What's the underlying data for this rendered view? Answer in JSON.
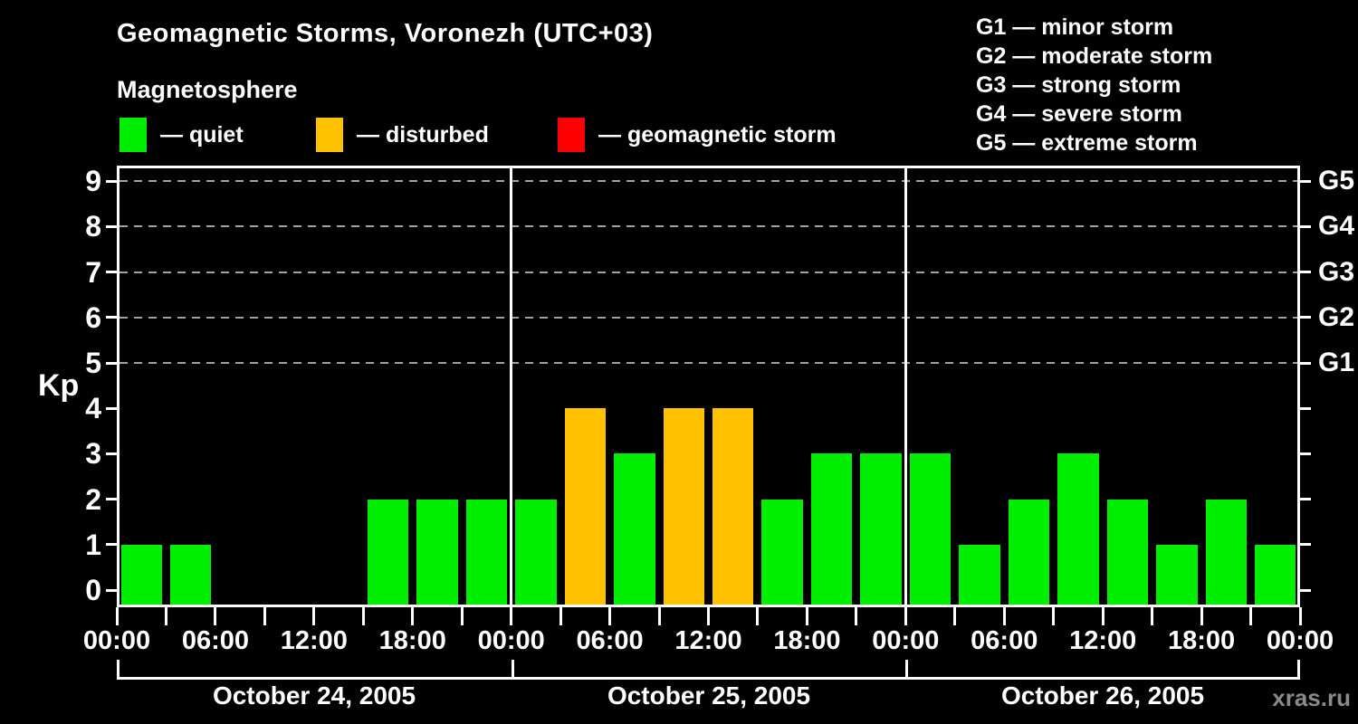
{
  "header": {
    "title": "Geomagnetic Storms, Voronezh (UTC+03)",
    "subtitle": "Magnetosphere"
  },
  "legend": {
    "items": [
      {
        "label": "— quiet",
        "status": "quiet",
        "color": "#00ee00"
      },
      {
        "label": "— disturbed",
        "status": "disturbed",
        "color": "#ffc100"
      },
      {
        "label": "— geomagnetic storm",
        "status": "storm",
        "color": "#ff0000"
      }
    ]
  },
  "g_scale_legend": [
    {
      "label": "G1 — minor storm"
    },
    {
      "label": "G2 — moderate storm"
    },
    {
      "label": "G3 — strong storm"
    },
    {
      "label": "G4 — severe storm"
    },
    {
      "label": "G5 — extreme storm"
    }
  ],
  "watermark": "xras.ru",
  "chart_data": {
    "type": "bar",
    "title": "Geomagnetic Storms, Voronezh (UTC+03)",
    "subtitle": "Magnetosphere",
    "ylabel": "Kp",
    "ylim": [
      0,
      9
    ],
    "y_ticks": [
      0,
      1,
      2,
      3,
      4,
      5,
      6,
      7,
      8,
      9
    ],
    "gridlines_at": [
      5,
      6,
      7,
      8,
      9
    ],
    "grid_on": true,
    "right_axis": [
      {
        "kp": 5,
        "label": "G1"
      },
      {
        "kp": 6,
        "label": "G2"
      },
      {
        "kp": 7,
        "label": "G3"
      },
      {
        "kp": 8,
        "label": "G4"
      },
      {
        "kp": 9,
        "label": "G5"
      }
    ],
    "x_tick_labels_per_day": [
      "00:00",
      "06:00",
      "12:00",
      "18:00"
    ],
    "x_final_label": "00:00",
    "bar_interval_hours": 3,
    "days": [
      {
        "date": "October 24, 2005",
        "kp": [
          1,
          1,
          0,
          0,
          0,
          2,
          2,
          2
        ]
      },
      {
        "date": "October 25, 2005",
        "kp": [
          2,
          4,
          3,
          4,
          4,
          2,
          3,
          3
        ]
      },
      {
        "date": "October 26, 2005",
        "kp": [
          3,
          1,
          2,
          3,
          2,
          1,
          2,
          1
        ]
      }
    ],
    "color_rule": {
      "disturbed_at_kp": 4,
      "storm_at_kp": 5
    },
    "colors": {
      "quiet": "#00ee00",
      "disturbed": "#ffc100",
      "storm": "#ff0000",
      "grid": "#a0a0a0",
      "axis": "#ffffff",
      "background": "#000000"
    }
  }
}
